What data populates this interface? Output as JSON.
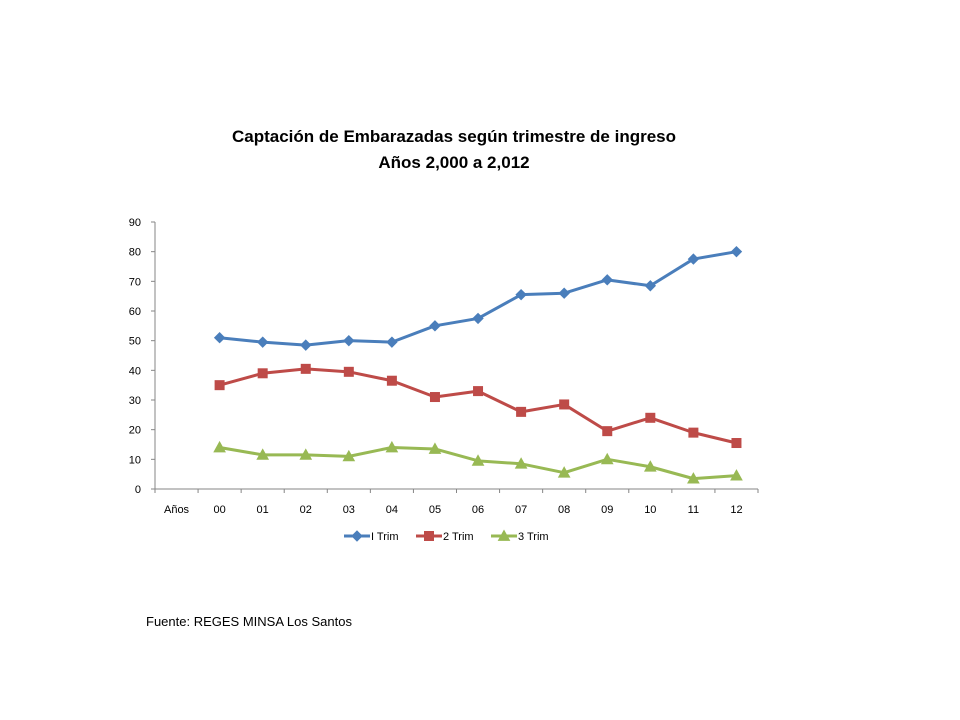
{
  "chart_data": {
    "type": "line",
    "title": "Captación de Embarazadas según trimestre de ingreso",
    "subtitle": "Años 2,000 a 2,012",
    "categories": [
      "Años",
      "00",
      "01",
      "02",
      "03",
      "04",
      "05",
      "06",
      "07",
      "08",
      "09",
      "10",
      "11",
      "12"
    ],
    "ylim": [
      0,
      90
    ],
    "yticks": [
      0,
      10,
      20,
      30,
      40,
      50,
      60,
      70,
      80,
      90
    ],
    "grid": false,
    "legend": "bottom",
    "series": [
      {
        "name": "I Trim",
        "color": "#4a7ebb",
        "marker": "diamond",
        "values": [
          null,
          51,
          49.5,
          48.5,
          50,
          49.5,
          55,
          57.5,
          65.5,
          66,
          70.5,
          68.5,
          77.5,
          80
        ]
      },
      {
        "name": "2 Trim",
        "color": "#be4b48",
        "marker": "square",
        "values": [
          null,
          35,
          39,
          40.5,
          39.5,
          36.5,
          31,
          33,
          26,
          28.5,
          19.5,
          24,
          19,
          15.5
        ]
      },
      {
        "name": "3 Trim",
        "color": "#98b954",
        "marker": "triangle",
        "values": [
          null,
          14,
          11.5,
          11.5,
          11,
          14,
          13.5,
          9.5,
          8.5,
          5.5,
          10,
          7.5,
          3.5,
          4.5
        ]
      }
    ]
  },
  "source": {
    "label": "Fuente:",
    "text": "REGES MINSA Los Santos"
  }
}
